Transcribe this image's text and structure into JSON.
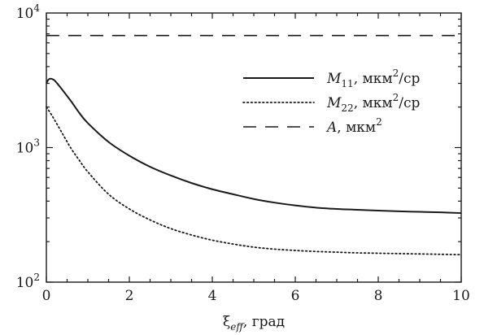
{
  "chart_data": {
    "type": "line",
    "xlabel": "ξeff, град",
    "xlabel_parts": {
      "symbol": "ξ",
      "subscript": "eff",
      "rest": ", град"
    },
    "xlim": [
      0,
      10
    ],
    "ylim": [
      100,
      10000
    ],
    "yscale": "log",
    "x_ticks": [
      0,
      2,
      4,
      6,
      8,
      10
    ],
    "x_tick_labels": [
      "0",
      "2",
      "4",
      "6",
      "8",
      "10"
    ],
    "y_ticks": [
      100,
      1000,
      10000
    ],
    "y_tick_labels": [
      {
        "base": "10",
        "exp": "2"
      },
      {
        "base": "10",
        "exp": "3"
      },
      {
        "base": "10",
        "exp": "4"
      }
    ],
    "grid": false,
    "legend_position": "upper-right",
    "series": [
      {
        "name": "M11, мкм2/ср",
        "legend": {
          "symbol": "M",
          "sub": "11",
          "unit": ", мкм",
          "sup": "2",
          "tail": "/ср"
        },
        "style": "solid",
        "color": "#1a1a1a",
        "x": [
          0,
          0.05,
          0.1,
          0.15,
          0.2,
          0.3,
          0.4,
          0.6,
          0.8,
          1,
          1.5,
          2,
          2.5,
          3,
          3.5,
          4,
          4.5,
          5,
          5.5,
          6,
          6.5,
          7,
          7.5,
          8,
          8.5,
          9,
          9.5,
          10
        ],
        "y": [
          3000,
          3200,
          3250,
          3220,
          3150,
          2900,
          2650,
          2200,
          1800,
          1520,
          1100,
          870,
          720,
          620,
          545,
          490,
          450,
          415,
          390,
          372,
          358,
          350,
          345,
          340,
          336,
          333,
          330,
          326
        ]
      },
      {
        "name": "M22, мкм2/ср",
        "legend": {
          "symbol": "M",
          "sub": "22",
          "unit": ", мкм",
          "sup": "2",
          "tail": "/ср"
        },
        "style": "dotted",
        "color": "#1a1a1a",
        "x": [
          0,
          0.1,
          0.2,
          0.4,
          0.6,
          0.8,
          1,
          1.5,
          2,
          2.5,
          3,
          3.5,
          4,
          4.5,
          5,
          5.5,
          6,
          6.5,
          7,
          7.5,
          8,
          8.5,
          9,
          9.5,
          10
        ],
        "y": [
          2000,
          1800,
          1600,
          1250,
          980,
          800,
          660,
          450,
          350,
          290,
          250,
          224,
          205,
          192,
          182,
          176,
          172,
          169,
          167,
          165,
          164,
          163,
          162,
          161,
          160
        ]
      },
      {
        "name": "A, мкм2",
        "legend": {
          "symbol": "A",
          "sub": "",
          "unit": ", мкм",
          "sup": "2",
          "tail": ""
        },
        "style": "dashed",
        "color": "#1a1a1a",
        "x": [
          0,
          10
        ],
        "y": [
          6800,
          6800
        ]
      }
    ]
  }
}
